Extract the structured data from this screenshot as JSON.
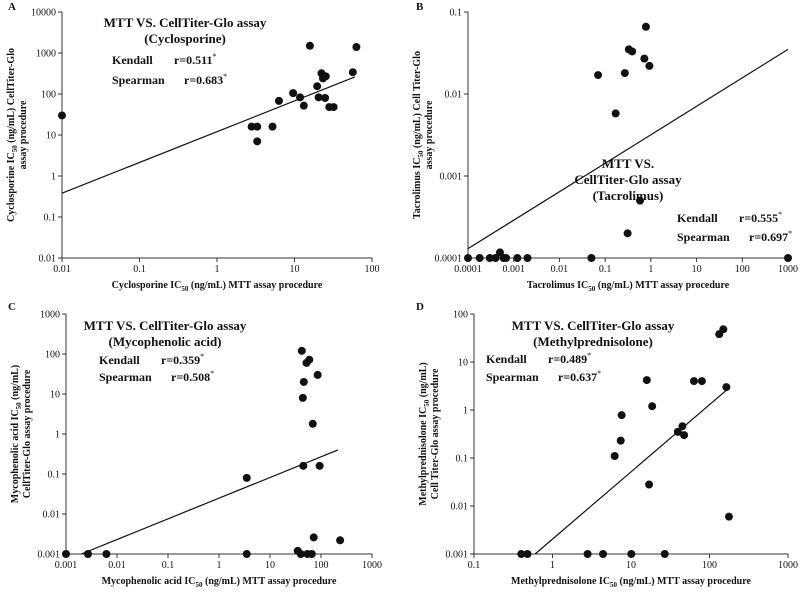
{
  "chart_data": [
    {
      "type": "scatter",
      "panel": "A",
      "title_lines": [
        "MTT VS. CellTiter-Glo assay",
        "(Cyclosporine)"
      ],
      "stats": {
        "kendall_label": "Kendall",
        "kendall_value": "r=0.511",
        "spearman_label": "Spearman",
        "spearman_value": "r=0.683",
        "marker": "*"
      },
      "xlabel_pre": "Cyclosporine IC",
      "xlabel_sub": "50",
      "xlabel_post": " (ng/mL) MTT assay procedure",
      "ylabel_line1_pre": "Cyclosporine IC",
      "ylabel_line1_sub": "50",
      "ylabel_line1_post": " (ng/mL) CellTiter-Glo",
      "ylabel_line2": "assay procedure",
      "xscale": "log",
      "yscale": "log",
      "xlim": [
        0.01,
        100
      ],
      "ylim": [
        0.01,
        10000
      ],
      "xticks": [
        0.01,
        0.1,
        1,
        10,
        100
      ],
      "xtick_labels": [
        "0.01",
        "0.1",
        "1",
        "10",
        "100"
      ],
      "yticks": [
        0.01,
        0.1,
        1,
        10,
        100,
        1000,
        10000
      ],
      "ytick_labels": [
        "0.01",
        "0.1",
        "1",
        "10",
        "100",
        "1000",
        "10000"
      ],
      "points": [
        [
          0.01,
          30
        ],
        [
          2.8,
          16
        ],
        [
          3.3,
          16
        ],
        [
          3.3,
          7
        ],
        [
          5.2,
          16
        ],
        [
          6.3,
          68
        ],
        [
          9.6,
          105
        ],
        [
          11.8,
          83
        ],
        [
          13.2,
          52
        ],
        [
          15.8,
          1500
        ],
        [
          19.6,
          155
        ],
        [
          20.5,
          83
        ],
        [
          22.3,
          320
        ],
        [
          23.3,
          240
        ],
        [
          24.8,
          80
        ],
        [
          25.3,
          270
        ],
        [
          28.1,
          48
        ],
        [
          32.0,
          48
        ],
        [
          56.6,
          340
        ],
        [
          62.9,
          1400
        ]
      ],
      "fit_line": [
        [
          0.01,
          0.38
        ],
        [
          60,
          260
        ]
      ]
    },
    {
      "type": "scatter",
      "panel": "B",
      "title_lines": [
        "MTT VS.",
        "CellTiter-Glo assay",
        "(Tacrolimus)"
      ],
      "stats": {
        "kendall_label": "Kendall",
        "kendall_value": "r=0.555",
        "spearman_label": "Spearman",
        "spearman_value": "r=0.697",
        "marker": "*"
      },
      "xlabel_pre": "Tacrolimus  IC",
      "xlabel_sub": "50",
      "xlabel_post": " (ng/mL) MTT assay procedure",
      "ylabel_line1_pre": "Tacrolimus IC",
      "ylabel_line1_sub": "50",
      "ylabel_line1_post": " (ng/mL) Cell Titer-Glo",
      "ylabel_line2": "assay procedure",
      "xscale": "log",
      "yscale": "log",
      "xlim": [
        0.0001,
        1000
      ],
      "ylim": [
        0.0001,
        0.1
      ],
      "xticks": [
        0.0001,
        0.001,
        0.01,
        0.1,
        1,
        10,
        100,
        1000
      ],
      "xtick_labels": [
        "0.0001",
        "0.001",
        "0.01",
        "0.1",
        "1",
        "10",
        "100",
        "1000"
      ],
      "yticks": [
        0.0001,
        0.001,
        0.01,
        0.1
      ],
      "ytick_labels": [
        "0.0001",
        "0.001",
        "0.01",
        "0.1"
      ],
      "points": [
        [
          0.0001,
          0.0001
        ],
        [
          0.00018,
          0.0001
        ],
        [
          0.0003,
          0.0001
        ],
        [
          0.0004,
          0.0001
        ],
        [
          0.0005,
          0.000117
        ],
        [
          0.0006,
          0.0001
        ],
        [
          0.00068,
          0.0001
        ],
        [
          0.0012,
          0.0001
        ],
        [
          0.002,
          0.0001
        ],
        [
          0.05,
          0.0001
        ],
        [
          0.07,
          0.017
        ],
        [
          0.17,
          0.0058
        ],
        [
          0.27,
          0.018
        ],
        [
          0.31,
          0.0002
        ],
        [
          0.33,
          0.035
        ],
        [
          0.39,
          0.033
        ],
        [
          0.58,
          0.0005
        ],
        [
          0.72,
          0.027
        ],
        [
          0.78,
          0.066
        ],
        [
          0.93,
          0.022
        ],
        [
          1000,
          0.0001
        ]
      ],
      "fit_line": [
        [
          0.0001,
          0.00013
        ],
        [
          1000,
          0.035
        ]
      ]
    },
    {
      "type": "scatter",
      "panel": "C",
      "title_lines": [
        "MTT VS. CellTiter-Glo assay",
        "(Mycophenolic acid)"
      ],
      "stats": {
        "kendall_label": "Kendall",
        "kendall_value": "r=0.359",
        "spearman_label": "Spearman",
        "spearman_value": "r=0.508",
        "marker": "*"
      },
      "xlabel_pre": "Mycophenolic acid  IC",
      "xlabel_sub": "50",
      "xlabel_post": " (ng/mL) MTT assay procedure",
      "ylabel_line1_pre": "Mycophenolic acid  IC",
      "ylabel_line1_sub": "50",
      "ylabel_line1_post": " (ng/mL)",
      "ylabel_line2": "CellTiter-Glo assay procedure",
      "xscale": "log",
      "yscale": "log",
      "xlim": [
        0.001,
        1000
      ],
      "ylim": [
        0.001,
        1000
      ],
      "xticks": [
        0.001,
        0.01,
        0.1,
        1,
        10,
        100,
        1000
      ],
      "xtick_labels": [
        "0.001",
        "0.01",
        "0.1",
        "1",
        "10",
        "100",
        "1000"
      ],
      "yticks": [
        0.001,
        0.01,
        0.1,
        1,
        10,
        100,
        1000
      ],
      "ytick_labels": [
        "0.001",
        "0.01",
        "0.1",
        "1",
        "10",
        "100",
        "1000"
      ],
      "points": [
        [
          0.001,
          0.001
        ],
        [
          0.0027,
          0.001
        ],
        [
          0.0062,
          0.001
        ],
        [
          3.5,
          0.08
        ],
        [
          3.5,
          0.001
        ],
        [
          35,
          0.0012
        ],
        [
          40,
          0.001
        ],
        [
          42,
          120
        ],
        [
          44,
          8
        ],
        [
          45,
          0.16
        ],
        [
          46,
          20
        ],
        [
          52,
          60
        ],
        [
          54,
          0.001
        ],
        [
          59,
          72
        ],
        [
          66,
          0.001
        ],
        [
          69,
          1.8
        ],
        [
          72,
          0.0026
        ],
        [
          86,
          30
        ],
        [
          94,
          0.16
        ],
        [
          237,
          0.0022
        ]
      ],
      "fit_line": [
        [
          0.002,
          0.001
        ],
        [
          215,
          0.4
        ]
      ]
    },
    {
      "type": "scatter",
      "panel": "D",
      "title_lines": [
        "MTT VS. CellTiter-Glo assay",
        "(Methylprednisolone)"
      ],
      "stats": {
        "kendall_label": "Kendall",
        "kendall_value": "r=0.489",
        "spearman_label": "Spearman",
        "spearman_value": "r=0.637",
        "marker": "*"
      },
      "xlabel_pre": "Methylprednisolone  IC",
      "xlabel_sub": "50",
      "xlabel_post": " (ng/mL) MTT assay procedure",
      "ylabel_line1_pre": "Methylprednisolone IC",
      "ylabel_line1_sub": "50",
      "ylabel_line1_post": " (ng/mL)",
      "ylabel_line2": "Cell Titer-Glo assay procedure",
      "xscale": "log",
      "yscale": "log",
      "xlim": [
        0.1,
        1000
      ],
      "ylim": [
        0.001,
        100
      ],
      "xticks": [
        0.1,
        1,
        10,
        100,
        1000
      ],
      "xtick_labels": [
        "0.1",
        "1",
        "10",
        "100",
        "1000"
      ],
      "yticks": [
        0.001,
        0.01,
        0.1,
        1,
        10,
        100
      ],
      "ytick_labels": [
        "0.001",
        "0.01",
        "0.1",
        "1",
        "10",
        "100"
      ],
      "points": [
        [
          0.4,
          0.001
        ],
        [
          0.48,
          0.001
        ],
        [
          2.8,
          0.001
        ],
        [
          4.4,
          0.001
        ],
        [
          6.2,
          0.11
        ],
        [
          7.4,
          0.23
        ],
        [
          7.6,
          0.78
        ],
        [
          10.1,
          0.001
        ],
        [
          15.9,
          4.2
        ],
        [
          17.0,
          0.028
        ],
        [
          18.6,
          1.2
        ],
        [
          26.9,
          0.001
        ],
        [
          39.5,
          0.35
        ],
        [
          45.2,
          0.46
        ],
        [
          47.5,
          0.3
        ],
        [
          63.4,
          4.0
        ],
        [
          80,
          4.0
        ],
        [
          133,
          38
        ],
        [
          150,
          48
        ],
        [
          164,
          3.0
        ],
        [
          177,
          0.006
        ]
      ],
      "fit_line": [
        [
          0.6,
          0.001
        ],
        [
          165,
          2.6
        ]
      ]
    }
  ]
}
